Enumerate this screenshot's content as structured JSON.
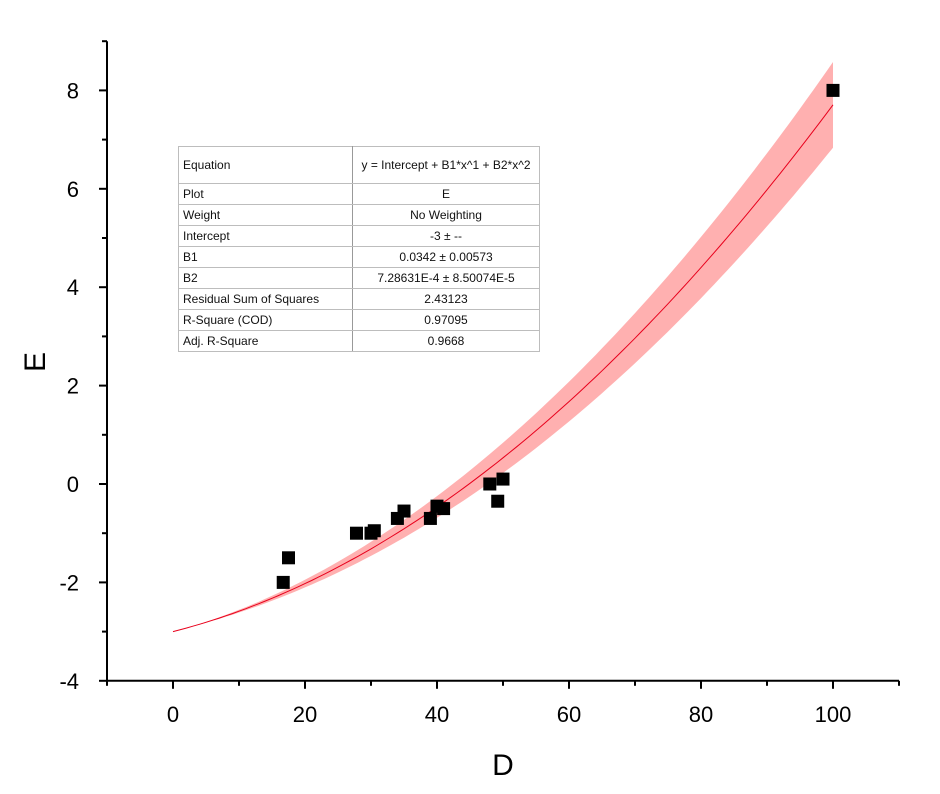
{
  "chart_data": {
    "type": "scatter",
    "xlabel": "D",
    "ylabel": "E",
    "xlim": [
      -10,
      110
    ],
    "ylim": [
      -4,
      9
    ],
    "xticks": [
      0,
      20,
      40,
      60,
      80,
      100
    ],
    "yticks": [
      -4,
      -2,
      0,
      2,
      4,
      6,
      8
    ],
    "xtick_labels": [
      "0",
      "20",
      "40",
      "60",
      "80",
      "100"
    ],
    "ytick_labels": [
      "-4",
      "-2",
      "0",
      "2",
      "4",
      "6",
      "8"
    ],
    "grid": false,
    "series": [
      {
        "type": "scatter",
        "marker": "square",
        "color": "#000000",
        "x": [
          16.7,
          17.5,
          27.8,
          30.0,
          30.5,
          34.0,
          35.0,
          39.0,
          40.0,
          41.0,
          48.0,
          49.2,
          50.0,
          100.0
        ],
        "y": [
          -2.0,
          -1.5,
          -1.0,
          -1.0,
          -0.95,
          -0.7,
          -0.55,
          -0.7,
          -0.45,
          -0.5,
          0.0,
          -0.35,
          0.1,
          8.0
        ]
      }
    ],
    "fit": {
      "type": "polynomial",
      "color": "#e8001c",
      "band_color": "#ffb0b0",
      "x_range": [
        0,
        100
      ],
      "intercept": -3,
      "b1": 0.0342,
      "b2": 0.000728631,
      "band_halfwidth_at_100": 0.87
    }
  },
  "stats_table": [
    {
      "key": "Equation",
      "value": "y = Intercept + B1*x^1 + B2*x^2"
    },
    {
      "key": "Plot",
      "value": "E"
    },
    {
      "key": "Weight",
      "value": "No Weighting"
    },
    {
      "key": "Intercept",
      "value": "-3 ± --"
    },
    {
      "key": "B1",
      "value": "0.0342 ± 0.00573"
    },
    {
      "key": "B2",
      "value": "7.28631E-4 ± 8.50074E-5"
    },
    {
      "key": "Residual Sum of Squares",
      "value": "2.43123"
    },
    {
      "key": "R-Square (COD)",
      "value": "0.97095"
    },
    {
      "key": "Adj. R-Square",
      "value": "0.9668"
    }
  ]
}
